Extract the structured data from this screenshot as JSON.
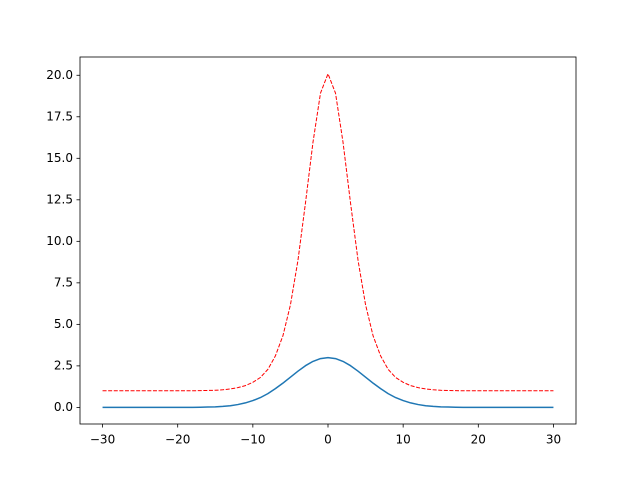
{
  "chart_data": {
    "type": "line",
    "x": [
      -30,
      -29,
      -28,
      -27,
      -26,
      -25,
      -24,
      -23,
      -22,
      -21,
      -20,
      -19,
      -18,
      -17,
      -16,
      -15,
      -14,
      -13,
      -12,
      -11,
      -10,
      -9,
      -8,
      -7,
      -6,
      -5,
      -4,
      -3,
      -2,
      -1,
      0,
      1,
      2,
      3,
      4,
      5,
      6,
      7,
      8,
      9,
      10,
      11,
      12,
      13,
      14,
      15,
      16,
      17,
      18,
      19,
      20,
      21,
      22,
      23,
      24,
      25,
      26,
      27,
      28,
      29,
      30
    ],
    "series": [
      {
        "color": "#1f77b4",
        "linestyle": "solid",
        "values": [
          0,
          0,
          0,
          0,
          0,
          0,
          0,
          0,
          0,
          0,
          0,
          0,
          0,
          0.01,
          0.02,
          0.03,
          0.06,
          0.1,
          0.17,
          0.27,
          0.41,
          0.59,
          0.83,
          1.13,
          1.46,
          1.82,
          2.18,
          2.51,
          2.77,
          2.94,
          3.0,
          2.94,
          2.77,
          2.51,
          2.18,
          1.82,
          1.46,
          1.13,
          0.83,
          0.59,
          0.41,
          0.27,
          0.17,
          0.1,
          0.06,
          0.03,
          0.02,
          0.01,
          0,
          0,
          0,
          0,
          0,
          0,
          0,
          0,
          0,
          0,
          0,
          0,
          0
        ]
      },
      {
        "color": "#ff0000",
        "linestyle": "dashed",
        "values": [
          1,
          1,
          1,
          1,
          1,
          1,
          1,
          1,
          1,
          1,
          1,
          1,
          1,
          1.01,
          1.02,
          1.03,
          1.06,
          1.11,
          1.19,
          1.31,
          1.51,
          1.8,
          2.29,
          3.1,
          4.31,
          6.17,
          8.85,
          12.3,
          15.96,
          18.92,
          20.09,
          18.92,
          15.96,
          12.3,
          8.85,
          6.17,
          4.31,
          3.1,
          2.29,
          1.8,
          1.51,
          1.31,
          1.19,
          1.11,
          1.06,
          1.03,
          1.02,
          1.01,
          1,
          1,
          1,
          1,
          1,
          1,
          1,
          1,
          1,
          1,
          1,
          1,
          1
        ]
      }
    ],
    "xlim": [
      -33,
      33
    ],
    "ylim": [
      -1.0,
      21.1
    ],
    "xticks": [
      {
        "value": -30,
        "label": "−30"
      },
      {
        "value": -20,
        "label": "−20"
      },
      {
        "value": -10,
        "label": "−10"
      },
      0,
      10,
      20,
      30
    ],
    "yticks": [
      {
        "value": 0,
        "label": "0.0"
      },
      2.5,
      {
        "value": 5,
        "label": "5.0"
      },
      7.5,
      {
        "value": 10,
        "label": "10.0"
      },
      12.5,
      {
        "value": 15,
        "label": "15.0"
      },
      17.5,
      {
        "value": 20,
        "label": "20.0"
      }
    ],
    "grid": false
  }
}
